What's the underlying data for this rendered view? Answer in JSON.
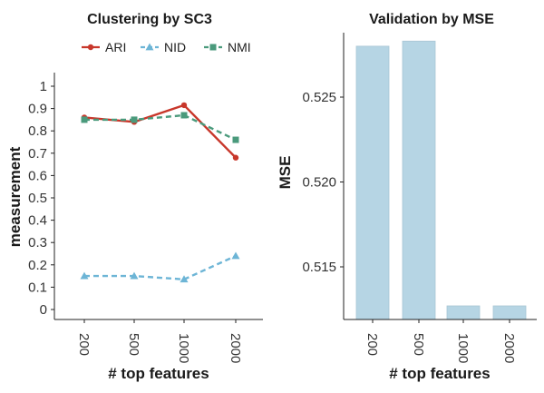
{
  "chart_data": [
    {
      "type": "line",
      "title": "Clustering by SC3",
      "xlabel": "# top features",
      "ylabel": "measurement",
      "categories": [
        "200",
        "500",
        "1000",
        "2000"
      ],
      "ylim": [
        0,
        1
      ],
      "yticks": [
        "0",
        "0.1",
        "0.2",
        "0.3",
        "0.4",
        "0.5",
        "0.6",
        "0.7",
        "0.8",
        "0.9",
        "1"
      ],
      "legend_position": "top",
      "series": [
        {
          "name": "ARI",
          "values": [
            0.86,
            0.84,
            0.915,
            0.68
          ],
          "color": "#c8372b",
          "marker": "circle",
          "dash": "solid"
        },
        {
          "name": "NID",
          "values": [
            0.15,
            0.15,
            0.135,
            0.24
          ],
          "color": "#6db5d6",
          "marker": "triangle",
          "dash": "dashed"
        },
        {
          "name": "NMI",
          "values": [
            0.85,
            0.85,
            0.87,
            0.76
          ],
          "color": "#4a9a7c",
          "marker": "square",
          "dash": "dashed"
        }
      ],
      "grid": false
    },
    {
      "type": "bar",
      "title": "Validation by MSE",
      "xlabel": "# top features",
      "ylabel": "MSE",
      "categories": [
        "200",
        "500",
        "1000",
        "2000"
      ],
      "values": [
        0.528,
        0.5283,
        0.5127,
        0.5127
      ],
      "ylim": [
        0.5115,
        0.5295
      ],
      "yticks": [
        "0.515",
        "0.520",
        "0.525"
      ],
      "bar_color": "#b6d5e4",
      "grid": false
    }
  ]
}
